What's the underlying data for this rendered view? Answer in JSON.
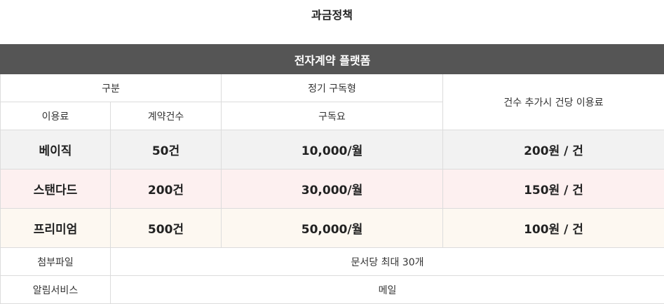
{
  "page": {
    "title": "과금정책"
  },
  "table": {
    "banner": "전자계약 플랫폼",
    "header": {
      "category": "구분",
      "subscription": "정기 구독형",
      "extra_fee": "건수 추가시 건당 이용료",
      "fee": "이용료",
      "contracts": "계약건수",
      "subscription_fee": "구독요"
    },
    "plans": [
      {
        "name": "베이직",
        "contracts": "50건",
        "price": "10,000/월",
        "extra": "200원 / 건"
      },
      {
        "name": "스탠다드",
        "contracts": "200건",
        "price": "30,000/월",
        "extra": "150원 / 건"
      },
      {
        "name": "프리미엄",
        "contracts": "500건",
        "price": "50,000/월",
        "extra": "100원 / 건"
      }
    ],
    "attachments": {
      "label": "첨부파일",
      "value": "문서당 최대 30개"
    },
    "notification": {
      "label": "알림서비스",
      "value": "메일"
    }
  }
}
